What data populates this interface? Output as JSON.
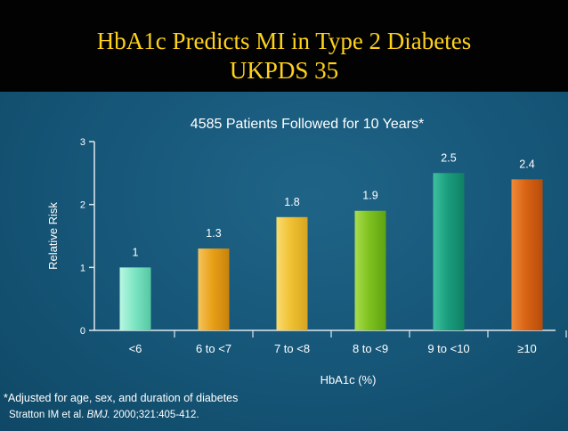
{
  "slide": {
    "title_line1": "HbA1c Predicts MI in Type 2 Diabetes",
    "title_line2": "UKPDS 35",
    "footnote": "*Adjusted for age, sex, and duration of diabetes",
    "citation_authors": "Stratton IM et al.",
    "citation_journal": "BMJ.",
    "citation_detail": "2000;321:405-412."
  },
  "chart_data": {
    "type": "bar",
    "title": "4585 Patients Followed for 10 Years*",
    "xlabel": "HbA1c (%)",
    "ylabel": "Relative Risk",
    "categories": [
      "<6",
      "6 to <7",
      "7 to <8",
      "8 to <9",
      "9 to <10",
      "≥10"
    ],
    "values": [
      1,
      1.3,
      1.8,
      1.9,
      2.5,
      2.4
    ],
    "value_labels": [
      "1",
      "1.3",
      "1.8",
      "1.9",
      "2.5",
      "2.4"
    ],
    "ylim": [
      0,
      3
    ],
    "yticks": [
      0,
      1,
      2,
      3
    ],
    "grid": false,
    "legend": "none",
    "colors": {
      "bars": [
        "#7fe6c4",
        "#e8a019",
        "#f0c132",
        "#7fc21f",
        "#1a9e7e",
        "#d96414"
      ],
      "bars_light": [
        "#b9f6e2",
        "#f6c45c",
        "#f9dc70",
        "#a9dd4f",
        "#3fc19e",
        "#ee8a3a"
      ],
      "bars_dark": [
        "#56c7a2",
        "#c9820b",
        "#d7a521",
        "#5ea312",
        "#118064",
        "#b74c09"
      ],
      "title_text": "#ffd21a",
      "text": "#ffffff",
      "axis": "#e0e8ee"
    }
  }
}
